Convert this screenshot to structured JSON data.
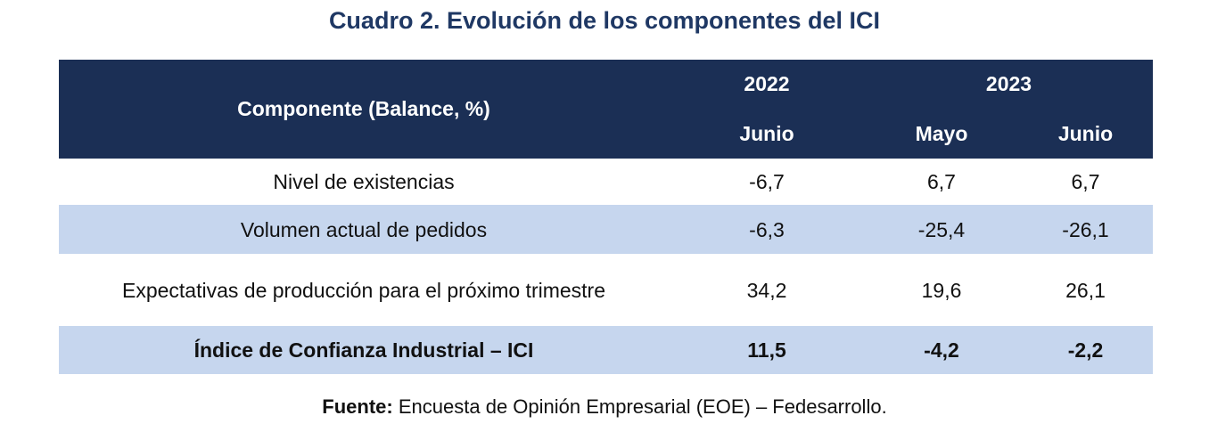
{
  "header": {
    "title": "Cuadro 2. Evolución de los componentes del ICI"
  },
  "table": {
    "component_header": "Componente (Balance, %)",
    "years": [
      "2022",
      "2023"
    ],
    "months": [
      "Junio",
      "Mayo",
      "Junio"
    ],
    "rows": [
      [
        "Nivel de existencias",
        "-6,7",
        "6,7",
        "6,7"
      ],
      [
        "Volumen actual de pedidos",
        "-6,3",
        "-25,4",
        "-26,1"
      ],
      [
        "Expectativas de producción para el próximo trimestre",
        "34,2",
        "19,6",
        "26,1"
      ],
      [
        "Índice de Confianza Industrial – ICI",
        "11,5",
        "-4,2",
        "-2,2"
      ]
    ]
  },
  "footer": {
    "source_label": "Fuente:",
    "source_text": "Encuesta de Opinión Empresarial (EOE) – Fedesarrollo."
  }
}
